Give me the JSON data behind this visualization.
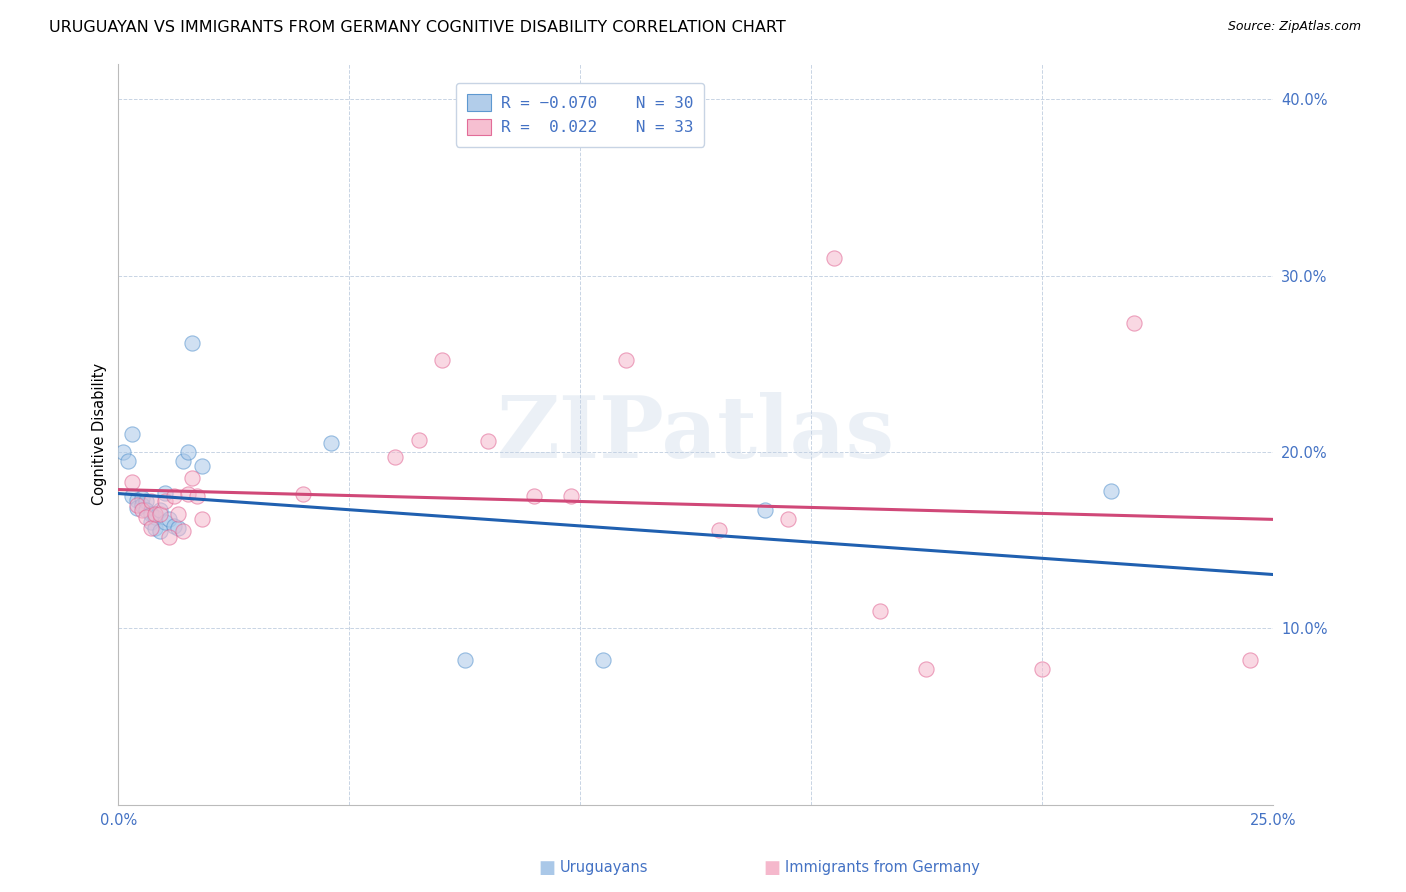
{
  "title": "URUGUAYAN VS IMMIGRANTS FROM GERMANY COGNITIVE DISABILITY CORRELATION CHART",
  "source": "Source: ZipAtlas.com",
  "ylabel": "Cognitive Disability",
  "watermark": "ZIPatlas",
  "xlim": [
    0.0,
    0.25
  ],
  "ylim": [
    0.0,
    0.42
  ],
  "xtick_positions": [
    0.0,
    0.05,
    0.1,
    0.15,
    0.2,
    0.25
  ],
  "ytick_positions": [
    0.1,
    0.2,
    0.3,
    0.4
  ],
  "ytick_labels": [
    "10.0%",
    "20.0%",
    "30.0%",
    "40.0%"
  ],
  "xtick_labels": [
    "0.0%",
    "",
    "",
    "",
    "",
    "25.0%"
  ],
  "color_uruguayan_face": "#aac8e8",
  "color_uruguayan_edge": "#5090cc",
  "color_germany_face": "#f5b8cc",
  "color_germany_edge": "#e06090",
  "color_line_uruguayan": "#2060b0",
  "color_line_germany": "#d04878",
  "color_axis_text": "#4472c4",
  "color_grid": "#c8d4e4",
  "uruguayan_x": [
    0.001,
    0.002,
    0.003,
    0.003,
    0.004,
    0.004,
    0.005,
    0.005,
    0.006,
    0.006,
    0.007,
    0.007,
    0.008,
    0.008,
    0.009,
    0.009,
    0.01,
    0.01,
    0.011,
    0.012,
    0.013,
    0.014,
    0.015,
    0.016,
    0.018,
    0.046,
    0.075,
    0.105,
    0.14,
    0.215
  ],
  "uruguayan_y": [
    0.2,
    0.195,
    0.21,
    0.175,
    0.173,
    0.168,
    0.174,
    0.17,
    0.172,
    0.167,
    0.165,
    0.16,
    0.163,
    0.157,
    0.167,
    0.155,
    0.177,
    0.16,
    0.162,
    0.158,
    0.157,
    0.195,
    0.2,
    0.262,
    0.192,
    0.205,
    0.082,
    0.082,
    0.167,
    0.178
  ],
  "germany_x": [
    0.003,
    0.004,
    0.005,
    0.006,
    0.007,
    0.007,
    0.008,
    0.009,
    0.01,
    0.011,
    0.012,
    0.013,
    0.014,
    0.015,
    0.016,
    0.017,
    0.018,
    0.04,
    0.06,
    0.065,
    0.07,
    0.08,
    0.09,
    0.098,
    0.11,
    0.13,
    0.145,
    0.155,
    0.165,
    0.175,
    0.2,
    0.22,
    0.245
  ],
  "germany_y": [
    0.183,
    0.17,
    0.167,
    0.163,
    0.172,
    0.157,
    0.165,
    0.165,
    0.172,
    0.152,
    0.175,
    0.165,
    0.155,
    0.176,
    0.185,
    0.175,
    0.162,
    0.176,
    0.197,
    0.207,
    0.252,
    0.206,
    0.175,
    0.175,
    0.252,
    0.156,
    0.162,
    0.31,
    0.11,
    0.077,
    0.077,
    0.273,
    0.082
  ],
  "marker_size": 120,
  "alpha_face": 0.55,
  "title_fontsize": 11.5,
  "label_fontsize": 10.5,
  "tick_fontsize": 10.5,
  "legend_fontsize": 11.5
}
